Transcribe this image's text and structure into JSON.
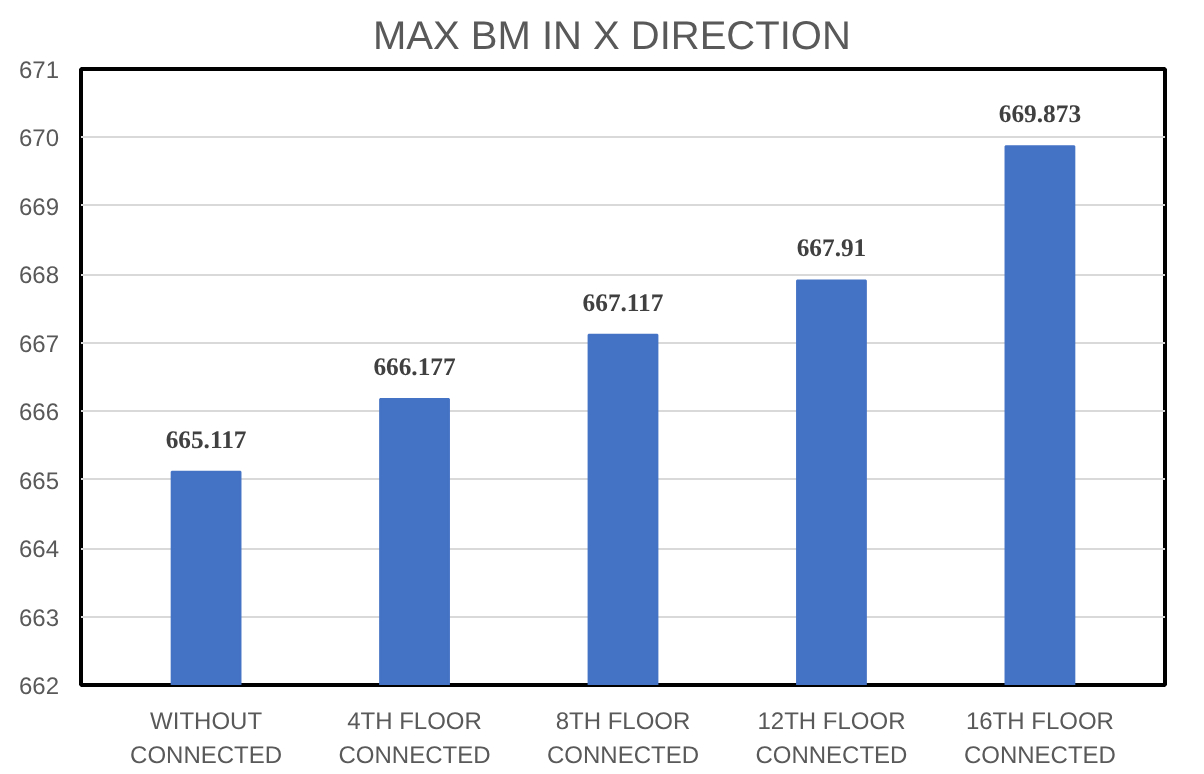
{
  "chart_data": {
    "type": "bar",
    "title": "MAX BM IN  X  DIRECTION",
    "categories": [
      "WITHOUT\nCONNECTED",
      "4TH FLOOR\nCONNECTED",
      "8TH FLOOR\nCONNECTED",
      "12TH FLOOR\nCONNECTED",
      "16TH FLOOR\nCONNECTED"
    ],
    "values": [
      665.117,
      666.177,
      667.117,
      667.91,
      669.873
    ],
    "color": "#4472c4",
    "ylim": [
      662,
      671
    ],
    "yticks": [
      662,
      663,
      664,
      665,
      666,
      667,
      668,
      669,
      670,
      671
    ],
    "grid": "y",
    "data_labels": true
  }
}
